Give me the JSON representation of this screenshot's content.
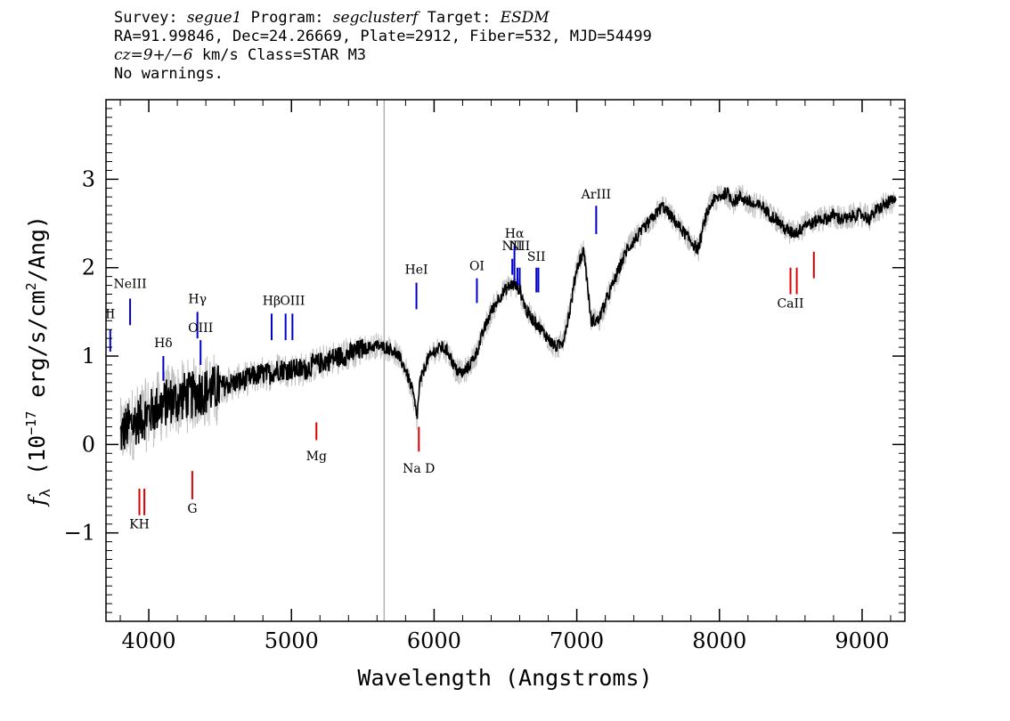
{
  "header": {
    "survey_label": "Survey:",
    "survey": "segue1",
    "program_label": "Program:",
    "program": "segclusterf",
    "target_label": "Target:",
    "target": "ESDM",
    "line2": "RA=91.99846, Dec=24.26669, Plate=2912, Fiber=532, MJD=54499",
    "cz_label": "cz",
    "cz_value": "=9+/−6",
    "cz_rest": " km/s Class=STAR M3",
    "line4": "No warnings."
  },
  "chart_data": {
    "type": "line",
    "title": "",
    "xlabel": "Wavelength (Angstroms)",
    "ylabel_main": "f",
    "ylabel_sub": "λ",
    "ylabel_rest": " (10",
    "ylabel_exp": "−17",
    "ylabel_tail": " erg/s/cm",
    "ylabel_exp2": "2",
    "ylabel_end": "/Ang)",
    "xlim": [
      3700,
      9300
    ],
    "ylim": [
      -2.0,
      3.9
    ],
    "x_ticks": [
      4000,
      5000,
      6000,
      7000,
      8000,
      9000
    ],
    "x_tick_labels": [
      "4000",
      "5000",
      "6000",
      "7000",
      "8000",
      "9000"
    ],
    "y_ticks": [
      -1,
      0,
      1,
      2,
      3
    ],
    "y_tick_labels": [
      "−1",
      "0",
      "1",
      "2",
      "3"
    ],
    "vertical_marker_x": 5650,
    "colors": {
      "flux": "#000000",
      "error": "#c0c0c0",
      "emission": "#0000cc",
      "absorption": "#dd0000",
      "marker": "#b0b0b0"
    },
    "series": [
      {
        "name": "",
        "x": [
          3800,
          3850,
          3900,
          3950,
          4000,
          4050,
          4100,
          4150,
          4200,
          4250,
          4300,
          4350,
          4400,
          4450,
          4500,
          4550,
          4600,
          4650,
          4700,
          4750,
          4800,
          4850,
          4900,
          4950,
          5000,
          5050,
          5100,
          5150,
          5200,
          5250,
          5300,
          5350,
          5400,
          5450,
          5500,
          5550,
          5600,
          5650,
          5700,
          5750,
          5800,
          5850,
          5880,
          5900,
          5950,
          6000,
          6050,
          6100,
          6150,
          6200,
          6250,
          6300,
          6350,
          6400,
          6450,
          6500,
          6550,
          6600,
          6650,
          6700,
          6750,
          6800,
          6850,
          6900,
          6950,
          7000,
          7050,
          7100,
          7150,
          7200,
          7250,
          7300,
          7350,
          7400,
          7450,
          7500,
          7550,
          7600,
          7650,
          7700,
          7750,
          7800,
          7850,
          7900,
          7950,
          8000,
          8050,
          8100,
          8150,
          8200,
          8250,
          8300,
          8350,
          8400,
          8450,
          8500,
          8550,
          8600,
          8650,
          8700,
          8750,
          8800,
          8850,
          8900,
          8950,
          9000,
          9050,
          9100,
          9150,
          9200,
          9240
        ],
        "y": [
          0.1,
          0.2,
          0.25,
          0.3,
          0.35,
          0.4,
          0.45,
          0.5,
          0.5,
          0.55,
          0.55,
          0.6,
          0.6,
          0.62,
          0.65,
          0.68,
          0.7,
          0.72,
          0.75,
          0.78,
          0.8,
          0.8,
          0.85,
          0.85,
          0.85,
          0.85,
          0.85,
          0.9,
          0.92,
          0.95,
          0.98,
          1.0,
          1.02,
          1.05,
          1.08,
          1.1,
          1.12,
          1.1,
          1.08,
          1.0,
          0.85,
          0.6,
          0.3,
          0.7,
          0.95,
          1.05,
          1.1,
          1.05,
          0.85,
          0.8,
          0.9,
          1.05,
          1.3,
          1.5,
          1.65,
          1.75,
          1.82,
          1.75,
          1.5,
          1.4,
          1.3,
          1.2,
          1.1,
          1.15,
          1.5,
          2.0,
          2.2,
          1.4,
          1.4,
          1.6,
          1.8,
          2.0,
          2.2,
          2.3,
          2.4,
          2.5,
          2.6,
          2.7,
          2.6,
          2.5,
          2.4,
          2.3,
          2.2,
          2.55,
          2.75,
          2.8,
          2.85,
          2.75,
          2.8,
          2.75,
          2.7,
          2.7,
          2.6,
          2.55,
          2.45,
          2.4,
          2.4,
          2.5,
          2.5,
          2.55,
          2.55,
          2.6,
          2.55,
          2.55,
          2.6,
          2.6,
          2.55,
          2.65,
          2.7,
          2.75,
          2.75
        ]
      }
    ],
    "lines": [
      {
        "label": "HeII",
        "display": "II",
        "x": 3730,
        "y0": 1.05,
        "y1": 1.3,
        "kind": "emission",
        "label_y": 1.43
      },
      {
        "label": "NeIII",
        "display": "NeIII",
        "x": 3869,
        "y0": 1.35,
        "y1": 1.65,
        "kind": "emission",
        "label_y": 1.77
      },
      {
        "label": "Hδ",
        "display": "Hδ",
        "x": 4102,
        "y0": 0.72,
        "y1": 1.0,
        "kind": "emission",
        "label_y": 1.1
      },
      {
        "label": "Hγ",
        "display": "Hγ",
        "x": 4341,
        "y0": 1.2,
        "y1": 1.5,
        "kind": "emission",
        "label_y": 1.6
      },
      {
        "label": "OIII",
        "display": "OIII",
        "x": 4363,
        "y0": 0.9,
        "y1": 1.18,
        "kind": "emission",
        "label_y": 1.27
      },
      {
        "label": "Hβ",
        "display": "Hβ",
        "x": 4861,
        "y0": 1.18,
        "y1": 1.48,
        "kind": "emission",
        "label_y": 1.58
      },
      {
        "label": "OIII_a",
        "display": "",
        "x": 4959,
        "y0": 1.18,
        "y1": 1.48,
        "kind": "emission",
        "label_y": 0
      },
      {
        "label": "OIII_b",
        "display": "OIII",
        "x": 5007,
        "y0": 1.18,
        "y1": 1.48,
        "kind": "emission",
        "label_y": 1.58
      },
      {
        "label": "HeI",
        "display": "HeI",
        "x": 5876,
        "y0": 1.53,
        "y1": 1.83,
        "kind": "emission",
        "label_y": 1.93
      },
      {
        "label": "OI",
        "display": "OI",
        "x": 6300,
        "y0": 1.6,
        "y1": 1.88,
        "kind": "emission",
        "label_y": 1.97
      },
      {
        "label": "NII_a",
        "display": "NII",
        "x": 6548,
        "y0": 1.92,
        "y1": 2.1,
        "kind": "emission",
        "label_y": 2.2
      },
      {
        "label": "Hα",
        "display": "Hα",
        "x": 6563,
        "y0": 1.85,
        "y1": 2.25,
        "kind": "emission",
        "label_y": 2.34
      },
      {
        "label": "NII_b",
        "display": "",
        "x": 6584,
        "y0": 1.8,
        "y1": 2.0,
        "kind": "emission",
        "label_y": 0
      },
      {
        "label": "NII_c",
        "display": "NII",
        "x": 6600,
        "y0": 1.8,
        "y1": 2.0,
        "kind": "emission",
        "label_y": 2.2
      },
      {
        "label": "SII_a",
        "display": "SII",
        "x": 6717,
        "y0": 1.72,
        "y1": 2.0,
        "kind": "emission",
        "label_y": 2.08
      },
      {
        "label": "SII_b",
        "display": "",
        "x": 6731,
        "y0": 1.72,
        "y1": 2.0,
        "kind": "emission",
        "label_y": 0
      },
      {
        "label": "ArIII",
        "display": "ArIII",
        "x": 7136,
        "y0": 2.38,
        "y1": 2.7,
        "kind": "emission",
        "label_y": 2.78
      },
      {
        "label": "K",
        "display": "KH",
        "x": 3934,
        "y0": -0.8,
        "y1": -0.5,
        "kind": "absorption",
        "label_y": -0.95
      },
      {
        "label": "H",
        "display": "",
        "x": 3969,
        "y0": -0.8,
        "y1": -0.5,
        "kind": "absorption",
        "label_y": 0
      },
      {
        "label": "G",
        "display": "G",
        "x": 4305,
        "y0": -0.62,
        "y1": -0.3,
        "kind": "absorption",
        "label_y": -0.77
      },
      {
        "label": "Mg",
        "display": "Mg",
        "x": 5175,
        "y0": 0.05,
        "y1": 0.25,
        "kind": "absorption",
        "label_y": -0.18
      },
      {
        "label": "Na D",
        "display": "Na D",
        "x": 5893,
        "y0": -0.08,
        "y1": 0.2,
        "kind": "absorption",
        "label_y": -0.32
      },
      {
        "label": "CaII_a",
        "display": "CaII",
        "x": 8498,
        "y0": 1.7,
        "y1": 2.0,
        "kind": "absorption",
        "label_y": 1.55
      },
      {
        "label": "CaII_b",
        "display": "",
        "x": 8542,
        "y0": 1.7,
        "y1": 2.0,
        "kind": "absorption",
        "label_y": 0
      },
      {
        "label": "CaII_c",
        "display": "",
        "x": 8662,
        "y0": 1.88,
        "y1": 2.18,
        "kind": "absorption",
        "label_y": 0
      }
    ]
  }
}
